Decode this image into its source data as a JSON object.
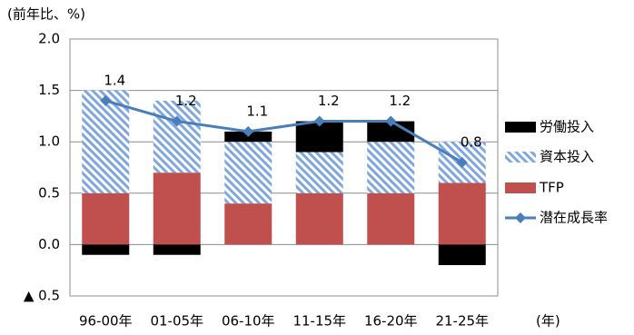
{
  "chart_data": {
    "type": "bar",
    "ylabel": "(前年比、%)",
    "xlabel": "(年)",
    "categories": [
      "96-00年",
      "01-05年",
      "06-10年",
      "11-15年",
      "16-20年",
      "21-25年"
    ],
    "series": [
      {
        "name": "労働投入",
        "color": "#000000",
        "values": [
          -0.1,
          -0.1,
          0.1,
          0.3,
          0.2,
          -0.2
        ]
      },
      {
        "name": "資本投入",
        "color": "#7fa7de",
        "hatch": true,
        "values": [
          1.0,
          0.7,
          0.6,
          0.4,
          0.5,
          0.4
        ]
      },
      {
        "name": "TFP",
        "color": "#c0504d",
        "values": [
          0.5,
          0.7,
          0.4,
          0.5,
          0.5,
          0.6
        ]
      },
      {
        "name": "潜在成長率",
        "color": "#4a7ebb",
        "type": "line",
        "values": [
          1.4,
          1.2,
          1.1,
          1.2,
          1.2,
          0.8
        ]
      }
    ],
    "ylim": [
      -0.5,
      2.0
    ],
    "yticks": [
      {
        "value": -0.5,
        "label": "▲ 0.5"
      },
      {
        "value": 0,
        "label": "0.0"
      },
      {
        "value": 0.5,
        "label": "0.5"
      },
      {
        "value": 1,
        "label": "1.0"
      },
      {
        "value": 1.5,
        "label": "1.5"
      },
      {
        "value": 2,
        "label": "2.0"
      }
    ],
    "grid": true,
    "legend": "right"
  }
}
